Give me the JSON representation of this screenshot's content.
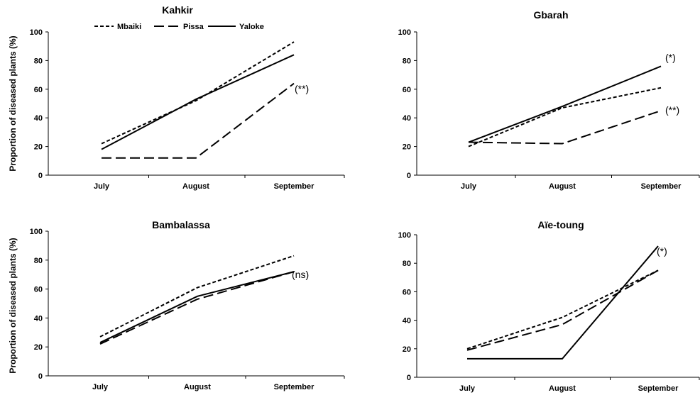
{
  "figure": {
    "legend": [
      {
        "name": "Mbaiki",
        "style": "short-dash"
      },
      {
        "name": "Pissa",
        "style": "long-dash"
      },
      {
        "name": "Yaloke",
        "style": "solid"
      }
    ],
    "line_color": "#000000"
  },
  "chart_data": [
    {
      "type": "line",
      "title": "Kahkir",
      "categories": [
        "July",
        "August",
        "September"
      ],
      "ylabel": "Proportion of diseased plants (%)",
      "ylim": [
        0,
        100
      ],
      "yticks": [
        0,
        20,
        40,
        60,
        80,
        100
      ],
      "series": [
        {
          "name": "Mbaiki",
          "values": [
            22,
            52,
            93
          ]
        },
        {
          "name": "Pissa",
          "values": [
            12,
            12,
            64
          ]
        },
        {
          "name": "Yaloke",
          "values": [
            18,
            53,
            84
          ]
        }
      ],
      "annotation": "(**)",
      "legend_position": "top"
    },
    {
      "type": "line",
      "title": "Gbarah",
      "categories": [
        "July",
        "August",
        "September"
      ],
      "ylabel": "",
      "ylim": [
        0,
        100
      ],
      "yticks": [
        0,
        20,
        40,
        60,
        80,
        100
      ],
      "series": [
        {
          "name": "Mbaiki",
          "values": [
            20,
            47,
            61
          ]
        },
        {
          "name": "Pissa",
          "values": [
            23,
            22,
            45
          ]
        },
        {
          "name": "Yaloke",
          "values": [
            23,
            48,
            76
          ]
        }
      ],
      "annotations": [
        "(*)",
        "(**)"
      ]
    },
    {
      "type": "line",
      "title": "Bambalassa",
      "categories": [
        "July",
        "August",
        "September"
      ],
      "ylabel": "Proportion of diseased plants (%)",
      "ylim": [
        0,
        100
      ],
      "yticks": [
        0,
        20,
        40,
        60,
        80,
        100
      ],
      "series": [
        {
          "name": "Mbaiki",
          "values": [
            27,
            61,
            83
          ]
        },
        {
          "name": "Pissa",
          "values": [
            22,
            53,
            72
          ]
        },
        {
          "name": "Yaloke",
          "values": [
            23,
            55,
            72
          ]
        }
      ],
      "annotation": "(ns)"
    },
    {
      "type": "line",
      "title": "Aïe-toung",
      "categories": [
        "July",
        "August",
        "September"
      ],
      "ylabel": "",
      "ylim": [
        0,
        100
      ],
      "yticks": [
        0,
        20,
        40,
        60,
        80,
        100
      ],
      "series": [
        {
          "name": "Mbaiki",
          "values": [
            20,
            42,
            75
          ]
        },
        {
          "name": "Pissa",
          "values": [
            19,
            37,
            75
          ]
        },
        {
          "name": "Yaloke",
          "values": [
            13,
            13,
            92
          ]
        }
      ],
      "annotation": "(*)"
    }
  ]
}
